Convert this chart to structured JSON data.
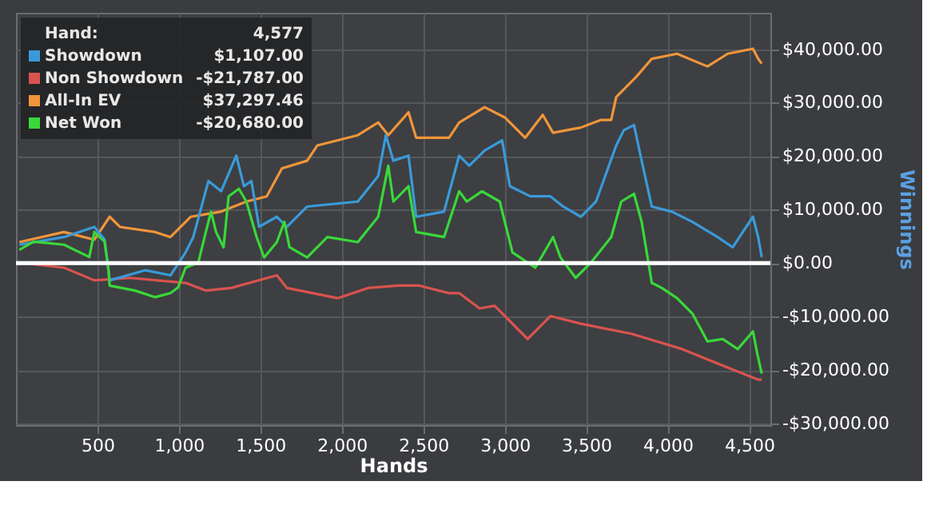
{
  "chart_data": {
    "type": "line",
    "xlabel": "Hands",
    "ylabel": "Winnings",
    "xlim": [
      0,
      4630
    ],
    "ylim": [
      -30300,
      46800
    ],
    "xticks": [
      500,
      {
        "value": 1000,
        "label": "1,000"
      },
      {
        "value": 1500,
        "label": "1,500"
      },
      {
        "value": 2000,
        "label": "2,000"
      },
      {
        "value": 2500,
        "label": "2,500"
      },
      {
        "value": 3000,
        "label": "3,000"
      },
      {
        "value": 3500,
        "label": "3,500"
      },
      {
        "value": 4000,
        "label": "4,000"
      },
      {
        "value": 4500,
        "label": "4,500"
      }
    ],
    "yticks": [
      {
        "value": -30000,
        "label": "-$30,000.00"
      },
      {
        "value": -20000,
        "label": "-$20,000.00"
      },
      {
        "value": -10000,
        "label": "-$10,000.00"
      },
      {
        "value": 0,
        "label": "$0.00"
      },
      {
        "value": 10000,
        "label": "$10,000.00"
      },
      {
        "value": 20000,
        "label": "$20,000.00"
      },
      {
        "value": 30000,
        "label": "$30,000.00"
      },
      {
        "value": 40000,
        "label": "$40,000.00"
      }
    ],
    "grid": true,
    "legend": "top left",
    "ref_lines": [
      {
        "axis": "y",
        "value": 0,
        "color": "#ffffff"
      }
    ],
    "annotations": [
      "Hand:",
      "4,577",
      "$1,107.00",
      "-$21,787.00",
      "$37,297.46",
      "-$20,680.00"
    ],
    "series": [
      {
        "name": "Showdown",
        "color": "#3a9ad9",
        "x": [
          21,
          295,
          481,
          544,
          575,
          793,
          948,
          1041,
          1088,
          1181,
          1259,
          1352,
          1399,
          1445,
          1492,
          1601,
          1663,
          1787,
          2098,
          2223,
          2270,
          2316,
          2409,
          2456,
          2627,
          2720,
          2782,
          2876,
          2984,
          3031,
          3156,
          3280,
          3358,
          3467,
          3560,
          3684,
          3731,
          3793,
          3840,
          3902,
          4026,
          4151,
          4306,
          4399,
          4523,
          4555,
          4577
        ],
        "values": [
          3430,
          4860,
          6760,
          4390,
          -3240,
          -1340,
          -2290,
          2000,
          4860,
          15340,
          13430,
          20090,
          14370,
          15340,
          6760,
          8660,
          6760,
          10570,
          11500,
          16290,
          23910,
          19140,
          20090,
          8660,
          9620,
          20090,
          18200,
          21060,
          22940,
          14370,
          12480,
          12480,
          10570,
          8660,
          11500,
          22000,
          24860,
          25810,
          19140,
          10570,
          9620,
          7710,
          4860,
          2950,
          8660,
          4860,
          1107
        ]
      },
      {
        "name": "Non Showdown",
        "color": "#d9534f",
        "x": [
          21,
          295,
          481,
          700,
          1041,
          1165,
          1321,
          1601,
          1663,
          1974,
          2160,
          2347,
          2471,
          2658,
          2720,
          2845,
          2938,
          3140,
          3280,
          3467,
          3778,
          4089,
          4399,
          4555,
          4577
        ],
        "values": [
          100,
          -860,
          -3240,
          -2770,
          -3710,
          -5140,
          -4660,
          -2290,
          -4660,
          -6570,
          -4660,
          -4200,
          -4200,
          -5620,
          -5620,
          -8480,
          -7990,
          -14200,
          -9910,
          -11340,
          -13230,
          -16090,
          -19910,
          -21800,
          -21787
        ]
      },
      {
        "name": "All-In EV",
        "color": "#f0953a",
        "x": [
          21,
          295,
          481,
          575,
          638,
          855,
          948,
          1072,
          1259,
          1414,
          1539,
          1632,
          1787,
          1850,
          2098,
          2223,
          2285,
          2409,
          2456,
          2658,
          2720,
          2876,
          3000,
          3125,
          3233,
          3296,
          3467,
          3591,
          3653,
          3684,
          3808,
          3902,
          4057,
          4244,
          4368,
          4523,
          4555,
          4577
        ],
        "values": [
          3910,
          5800,
          4370,
          8660,
          6760,
          5800,
          4860,
          8660,
          9620,
          11500,
          12480,
          17710,
          19140,
          22000,
          23910,
          26290,
          23910,
          28200,
          23430,
          23430,
          26290,
          29140,
          27230,
          23430,
          27710,
          24370,
          25340,
          26770,
          26770,
          31060,
          34860,
          38200,
          39140,
          36770,
          39140,
          40080,
          38200,
          37297.46
        ]
      },
      {
        "name": "Net Won",
        "color": "#39d839",
        "x": [
          21,
          108,
          295,
          450,
          481,
          544,
          568,
          575,
          730,
          855,
          948,
          995,
          1041,
          1119,
          1165,
          1197,
          1228,
          1274,
          1305,
          1368,
          1414,
          1477,
          1523,
          1601,
          1647,
          1679,
          1787,
          1911,
          2098,
          2223,
          2285,
          2316,
          2409,
          2456,
          2627,
          2720,
          2767,
          2860,
          2969,
          3047,
          3187,
          3296,
          3342,
          3435,
          3529,
          3653,
          3715,
          3793,
          3840,
          3902,
          3964,
          4057,
          4151,
          4244,
          4337,
          4430,
          4523,
          4550,
          4577
        ],
        "values": [
          2490,
          4000,
          3430,
          1140,
          5800,
          4000,
          -1340,
          -4200,
          -5140,
          -6380,
          -5620,
          -4570,
          -860,
          100,
          5800,
          9620,
          5800,
          2950,
          12480,
          13900,
          11500,
          4860,
          1050,
          3910,
          7710,
          2950,
          1050,
          4860,
          3910,
          8660,
          18200,
          11500,
          14370,
          5800,
          4860,
          13430,
          11500,
          13430,
          11500,
          2000,
          -860,
          4860,
          1050,
          -2770,
          100,
          4860,
          11500,
          12950,
          7710,
          -3710,
          -4660,
          -6570,
          -9430,
          -14660,
          -14200,
          -16090,
          -12770,
          -17000,
          -20680
        ]
      }
    ]
  }
}
